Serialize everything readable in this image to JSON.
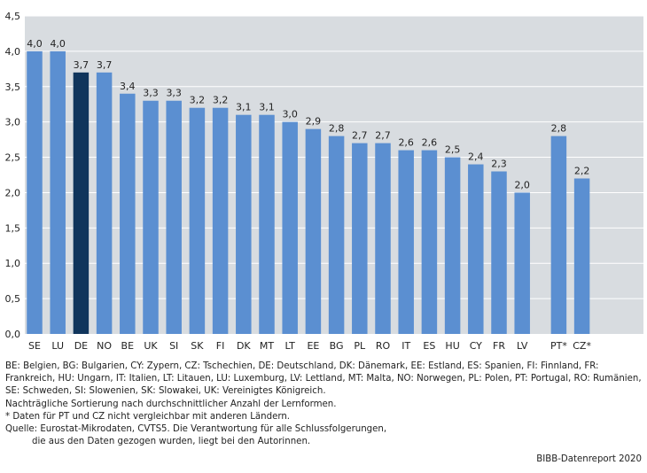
{
  "chart_data": {
    "type": "bar",
    "categories": [
      "SE",
      "LU",
      "DE",
      "NO",
      "BE",
      "UK",
      "SI",
      "SK",
      "FI",
      "DK",
      "MT",
      "LT",
      "EE",
      "BG",
      "PL",
      "RO",
      "IT",
      "ES",
      "HU",
      "CY",
      "FR",
      "LV",
      "PT*",
      "CZ*"
    ],
    "values": [
      4.0,
      4.0,
      3.7,
      3.7,
      3.4,
      3.3,
      3.3,
      3.2,
      3.2,
      3.1,
      3.1,
      3.0,
      2.9,
      2.8,
      2.7,
      2.7,
      2.6,
      2.6,
      2.5,
      2.4,
      2.3,
      2.0,
      2.8,
      2.2
    ],
    "value_labels": [
      "4,0",
      "4,0",
      "3,7",
      "3,7",
      "3,4",
      "3,3",
      "3,3",
      "3,2",
      "3,2",
      "3,1",
      "3,1",
      "3,0",
      "2,9",
      "2,8",
      "2,7",
      "2,7",
      "2,6",
      "2,6",
      "2,5",
      "2,4",
      "2,3",
      "2,0",
      "2,8",
      "2,2"
    ],
    "highlight": "DE",
    "ylim": [
      0,
      4.5
    ],
    "yticks": [
      "0,0",
      "0,5",
      "1,0",
      "1,5",
      "2,0",
      "2,5",
      "3,0",
      "3,5",
      "4,0",
      "4,5"
    ],
    "grid": true,
    "colors": {
      "bar": "#5b8fd1",
      "highlight": "#10355c",
      "plot_bg": "#d8dce0",
      "grid": "#ffffff"
    }
  },
  "notes": {
    "abbreviations": "BE: Belgien, BG: Bulgarien, CY: Zypern, CZ: Tschechien, DE: Deutschland, DK: Dänemark, EE: Estland, ES: Spanien, FI: Finnland, FR: Frankreich, HU: Ungarn, IT: Italien, LT: Litauen, LU: Luxemburg, LV: Lettland, MT: Malta, NO: Norwegen, PL: Polen, PT: Portugal, RO: Rumänien, SE: Schweden, SI: Slowenien, SK: Slowakei, UK: Vereinigtes Königreich.",
    "sorting": "Nachträgliche Sortierung nach durchschnittlicher Anzahl der Lernformen.",
    "footnote": "* Daten für PT und CZ nicht vergleichbar mit anderen Ländern.",
    "source_line1": "Quelle: Eurostat-Mikrodaten, CVTS5. Die Verantwortung für alle Schlussfolgerungen,",
    "source_line2": "die aus den Daten gezogen wurden, liegt bei den Autorinnen."
  },
  "credit": "BIBB-Datenreport 2020"
}
